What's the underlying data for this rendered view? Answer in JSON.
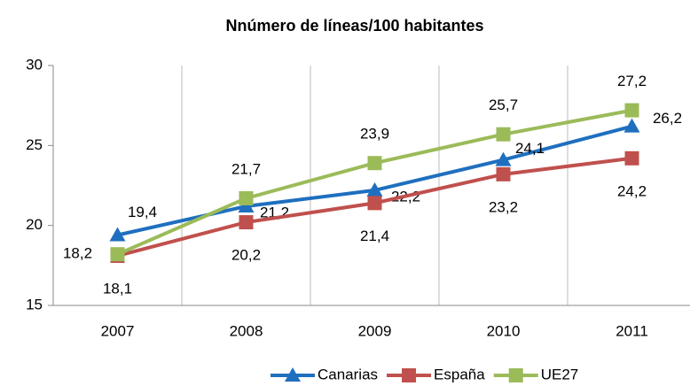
{
  "chart_data": {
    "type": "line",
    "title": "Nnúmero de líneas/100 habitantes",
    "categories": [
      "2007",
      "2008",
      "2009",
      "2010",
      "2011"
    ],
    "series": [
      {
        "name": "Canarias",
        "color": "#1f6fbf",
        "marker": "triangle",
        "values": [
          19.4,
          21.2,
          22.2,
          24.1,
          26.2
        ],
        "value_labels": [
          "19,4",
          "21,2",
          "22,2",
          "24,1",
          "26,2"
        ]
      },
      {
        "name": "España",
        "color": "#c0504d",
        "marker": "square",
        "values": [
          18.1,
          20.2,
          21.4,
          23.2,
          24.2
        ],
        "value_labels": [
          "18,1",
          "20,2",
          "21,4",
          "23,2",
          "24,2"
        ]
      },
      {
        "name": "UE27",
        "color": "#9bbb59",
        "marker": "square",
        "values": [
          18.2,
          21.7,
          23.9,
          25.7,
          27.2
        ],
        "value_labels": [
          "18,2",
          "21,7",
          "23,9",
          "25,7",
          "27,2"
        ]
      }
    ],
    "ylim": [
      15,
      30
    ],
    "yticks": [
      15,
      20,
      25,
      30
    ],
    "grid": true,
    "legend": "bottom"
  }
}
